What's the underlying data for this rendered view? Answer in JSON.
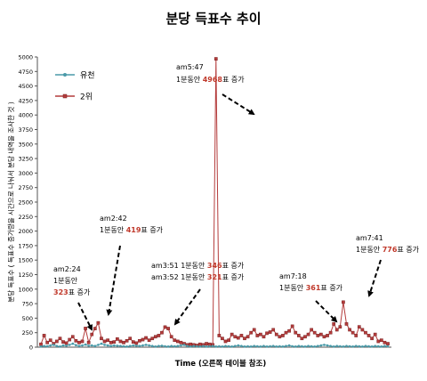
{
  "chart_data": {
    "type": "line",
    "title": "분당 득표수 추이",
    "xlabel": "Time (오른쪽 테이블 참조)",
    "ylabel": "분당 득표수 ( 득표수 증가량을 시간으로 나눠서 분당 내역을 조사한 것 )",
    "ylim": [
      0,
      5000
    ],
    "yticks": [
      0,
      250,
      500,
      750,
      1000,
      1250,
      1500,
      1750,
      2000,
      2250,
      2500,
      2750,
      3000,
      3250,
      3500,
      3750,
      4000,
      4250,
      4500,
      4750,
      5000
    ],
    "grid": false,
    "legend_position": "top-left",
    "colors": {
      "series1": "#4a9aa8",
      "series2": "#b43c3c",
      "highlight": "#c0392b",
      "text": "#000000"
    },
    "series": [
      {
        "name": "유천",
        "values": [
          10,
          20,
          15,
          30,
          40,
          20,
          10,
          30,
          25,
          40,
          60,
          35,
          20,
          30,
          45,
          25,
          30,
          20,
          40,
          60,
          40,
          30,
          20,
          30,
          25,
          20,
          15,
          10,
          20,
          30,
          25,
          20,
          30,
          40,
          30,
          20,
          10,
          20,
          25,
          15,
          10,
          20,
          15,
          20,
          30,
          40,
          20,
          10,
          20,
          15,
          10,
          20,
          10,
          15,
          20,
          10,
          15,
          10,
          20,
          15,
          10,
          20,
          30,
          20,
          10,
          15,
          10,
          20,
          15,
          10,
          20,
          10,
          15,
          20,
          10,
          15,
          10,
          20,
          30,
          15,
          10,
          20,
          15,
          10,
          20,
          15,
          10,
          20,
          30,
          40,
          30,
          20,
          10,
          20,
          15,
          10,
          20,
          15,
          10,
          20,
          15,
          10,
          20,
          15,
          10,
          20,
          15,
          10,
          20,
          15
        ]
      },
      {
        "name": "2위",
        "values": [
          50,
          200,
          80,
          120,
          60,
          100,
          150,
          90,
          70,
          130,
          180,
          110,
          80,
          100,
          323,
          80,
          220,
          320,
          419,
          150,
          100,
          120,
          80,
          90,
          140,
          100,
          80,
          110,
          150,
          90,
          70,
          110,
          130,
          160,
          120,
          150,
          180,
          200,
          250,
          346,
          321,
          180,
          120,
          100,
          80,
          60,
          40,
          50,
          40,
          30,
          50,
          40,
          60,
          50,
          40,
          4968,
          200,
          150,
          100,
          120,
          220,
          180,
          160,
          200,
          150,
          180,
          250,
          300,
          200,
          220,
          180,
          240,
          260,
          300,
          220,
          180,
          200,
          250,
          280,
          361,
          250,
          200,
          150,
          180,
          220,
          300,
          250,
          200,
          220,
          180,
          200,
          250,
          400,
          300,
          350,
          776,
          400,
          300,
          250,
          200,
          350,
          300,
          250,
          200,
          150,
          220,
          100,
          120,
          80,
          60
        ]
      }
    ],
    "annotations": [
      {
        "pre": "am2:24\n1분동안\n",
        "value": "323",
        "post": "표 증가",
        "target_index": 14
      },
      {
        "pre": "am2:42\n1분동안 ",
        "value": "419",
        "post": "표 증가",
        "target_index": 18
      },
      {
        "pre": "am3:51 1분동안 ",
        "value": "346",
        "post": "표 증가\nam3:52 1분동안 ",
        "value2": "321",
        "post2": "표 증가",
        "target_index": 39
      },
      {
        "pre": "am5:47\n1분동안 ",
        "value": "4968",
        "post": "표 증가",
        "target_index": 55
      },
      {
        "pre": "am7:18\n1분동안 ",
        "value": "361",
        "post": "표 증가",
        "target_index": 79
      },
      {
        "pre": "am7:41\n1분동안 ",
        "value": "776",
        "post": "표 증가",
        "target_index": 95
      }
    ]
  }
}
